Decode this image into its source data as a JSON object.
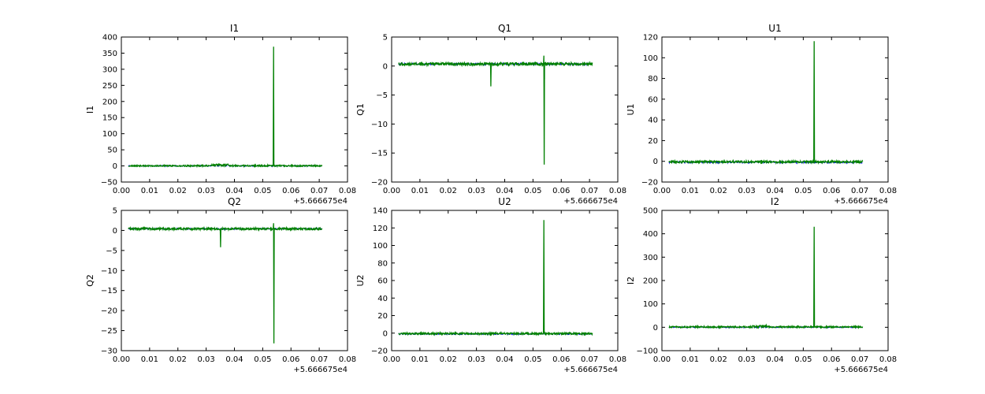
{
  "figure": {
    "background": "#ffffff",
    "axes_color": "#000000",
    "series_colors": {
      "measured_blue": "#0000ff",
      "model_green": "#008000",
      "pale_blue": "#a9c0d6"
    }
  },
  "chart_data": [
    {
      "type": "line",
      "id": "I1",
      "title": "I1",
      "ylabel": "I1",
      "ylim": [
        -50,
        400
      ],
      "yticks": [
        -50,
        0,
        50,
        100,
        150,
        200,
        250,
        300,
        350,
        400
      ],
      "xlim": [
        0,
        0.08
      ],
      "xtick_step": 0.01,
      "xticks": [
        "0.00",
        "0.01",
        "0.02",
        "0.03",
        "0.04",
        "0.05",
        "0.06",
        "0.07",
        "0.08"
      ],
      "x_offset_label": "+5.666675e4",
      "x_range": [
        0.0025,
        0.071
      ],
      "grid": false,
      "series": [
        {
          "name": "blue-dashed",
          "color": "#0000ff",
          "style": "dashed",
          "baseline": 0,
          "noise": 1.5
        },
        {
          "name": "green-solid",
          "color": "#008000",
          "style": "solid",
          "baseline": 0.5,
          "noise": 2,
          "bumps": [
            {
              "from": 0.032,
              "to": 0.038,
              "amp": 4
            }
          ],
          "spikes": [
            {
              "x": 0.0538,
              "y": 370
            }
          ]
        }
      ]
    },
    {
      "type": "line",
      "id": "Q1",
      "title": "Q1",
      "ylabel": "Q1",
      "ylim": [
        -20,
        5
      ],
      "yticks": [
        -20,
        -15,
        -10,
        -5,
        0,
        5
      ],
      "xlim": [
        0,
        0.08
      ],
      "xtick_step": 0.01,
      "xticks": [
        "0.00",
        "0.01",
        "0.02",
        "0.03",
        "0.04",
        "0.05",
        "0.06",
        "0.07",
        "0.08"
      ],
      "x_offset_label": "+5.666675e4",
      "x_range": [
        0.0025,
        0.071
      ],
      "grid": false,
      "series": [
        {
          "name": "blue-dashed",
          "color": "#0000ff",
          "style": "dashed",
          "baseline": 0.35,
          "noise": 0.15
        },
        {
          "name": "green-solid",
          "color": "#008000",
          "style": "solid",
          "baseline": 0.35,
          "noise": 0.25,
          "spikes": [
            {
              "x": 0.0351,
              "y": -3.5
            },
            {
              "x": 0.0538,
              "y": 1.8
            },
            {
              "x": 0.05392,
              "y": -17
            }
          ],
          "extra_segments": [
            {
              "x": 0.0541,
              "y1": 0.3,
              "y2": -2.3,
              "color": "#a9c0d6"
            }
          ]
        }
      ]
    },
    {
      "type": "line",
      "id": "U1",
      "title": "U1",
      "ylabel": "U1",
      "ylim": [
        -20,
        120
      ],
      "yticks": [
        -20,
        0,
        20,
        40,
        60,
        80,
        100,
        120
      ],
      "xlim": [
        0,
        0.08
      ],
      "xtick_step": 0.01,
      "xticks": [
        "0.00",
        "0.01",
        "0.02",
        "0.03",
        "0.04",
        "0.05",
        "0.06",
        "0.07",
        "0.08"
      ],
      "x_offset_label": "+5.666675e4",
      "x_range": [
        0.0025,
        0.071
      ],
      "grid": false,
      "series": [
        {
          "name": "blue-dashed",
          "color": "#0000ff",
          "style": "dashed",
          "baseline": -1,
          "noise": 0.7
        },
        {
          "name": "green-solid",
          "color": "#008000",
          "style": "solid",
          "baseline": -0.5,
          "noise": 1,
          "spikes": [
            {
              "x": 0.0351,
              "y": -2.5
            },
            {
              "x": 0.03517,
              "y": 1.2
            },
            {
              "x": 0.0538,
              "y": 116
            }
          ]
        }
      ]
    },
    {
      "type": "line",
      "id": "Q2",
      "title": "Q2",
      "ylabel": "Q2",
      "ylim": [
        -30,
        5
      ],
      "yticks": [
        -30,
        -25,
        -20,
        -15,
        -10,
        -5,
        0,
        5
      ],
      "xlim": [
        0,
        0.08
      ],
      "xtick_step": 0.01,
      "xticks": [
        "0.00",
        "0.01",
        "0.02",
        "0.03",
        "0.04",
        "0.05",
        "0.06",
        "0.07",
        "0.08"
      ],
      "x_offset_label": "+5.666675e4",
      "x_range": [
        0.0025,
        0.071
      ],
      "grid": false,
      "series": [
        {
          "name": "blue-dashed",
          "color": "#0000ff",
          "style": "dashed",
          "baseline": 0.4,
          "noise": 0.15
        },
        {
          "name": "green-solid",
          "color": "#008000",
          "style": "solid",
          "baseline": 0.4,
          "noise": 0.25,
          "spikes": [
            {
              "x": 0.0351,
              "y": -4.2
            },
            {
              "x": 0.0538,
              "y": 1.8
            },
            {
              "x": 0.05392,
              "y": -28.2
            }
          ]
        }
      ]
    },
    {
      "type": "line",
      "id": "U2",
      "title": "U2",
      "ylabel": "U2",
      "ylim": [
        -20,
        140
      ],
      "yticks": [
        -20,
        0,
        20,
        40,
        60,
        80,
        100,
        120,
        140
      ],
      "xlim": [
        0,
        0.08
      ],
      "xtick_step": 0.01,
      "xticks": [
        "0.00",
        "0.01",
        "0.02",
        "0.03",
        "0.04",
        "0.05",
        "0.06",
        "0.07",
        "0.08"
      ],
      "x_offset_label": "+5.666675e4",
      "x_range": [
        0.0025,
        0.071
      ],
      "grid": false,
      "series": [
        {
          "name": "blue-dashed",
          "color": "#0000ff",
          "style": "dashed",
          "baseline": -1,
          "noise": 0.7
        },
        {
          "name": "green-solid",
          "color": "#008000",
          "style": "solid",
          "baseline": -0.5,
          "noise": 1,
          "spikes": [
            {
              "x": 0.0351,
              "y": -3
            },
            {
              "x": 0.0538,
              "y": 129
            }
          ]
        }
      ]
    },
    {
      "type": "line",
      "id": "I2",
      "title": "I2",
      "ylabel": "I2",
      "ylim": [
        -100,
        500
      ],
      "yticks": [
        -100,
        0,
        100,
        200,
        300,
        400,
        500
      ],
      "xlim": [
        0,
        0.08
      ],
      "xtick_step": 0.01,
      "xticks": [
        "0.00",
        "0.01",
        "0.02",
        "0.03",
        "0.04",
        "0.05",
        "0.06",
        "0.07",
        "0.08"
      ],
      "x_offset_label": "+5.666675e4",
      "x_range": [
        0.0025,
        0.071
      ],
      "grid": false,
      "series": [
        {
          "name": "blue-dashed",
          "color": "#0000ff",
          "style": "dashed",
          "baseline": 0,
          "noise": 2
        },
        {
          "name": "green-solid",
          "color": "#008000",
          "style": "solid",
          "baseline": 1.5,
          "noise": 3,
          "bumps": [
            {
              "from": 0.032,
              "to": 0.038,
              "amp": 6
            }
          ],
          "spikes": [
            {
              "x": 0.0538,
              "y": 430
            }
          ]
        }
      ]
    }
  ]
}
